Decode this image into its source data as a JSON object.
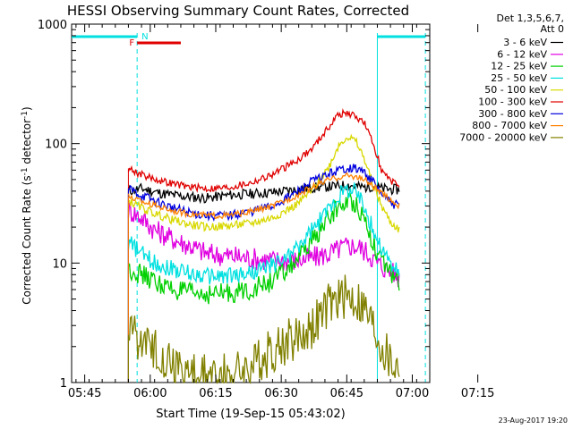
{
  "chart_data": {
    "type": "line",
    "title": "HESSI Observing Summary Count Rates, Corrected",
    "xlabel": "Start Time (19-Sep-15 05:43:02)",
    "ylabel_main": "Corrected Count Rate (s",
    "ylabel_sup1": "-1",
    "ylabel_mid": " detector",
    "ylabel_sup2": "-1",
    "ylabel_end": ")",
    "yscale": "log",
    "ylim": [
      1,
      1000
    ],
    "xlim": [
      -1,
      81
    ],
    "yticks": [
      {
        "value": 1,
        "label": "1"
      },
      {
        "value": 10,
        "label": "10"
      },
      {
        "value": 100,
        "label": "100"
      },
      {
        "value": 1000,
        "label": "1000"
      }
    ],
    "xticks": [
      {
        "value": 2,
        "label": "05:45"
      },
      {
        "value": 17,
        "label": "06:00"
      },
      {
        "value": 32,
        "label": "06:15"
      },
      {
        "value": 47,
        "label": "06:30"
      },
      {
        "value": 62,
        "label": "06:45"
      },
      {
        "value": 77,
        "label": "07:00"
      },
      {
        "value": 92,
        "label": "07:15"
      }
    ],
    "legend_header": [
      "Det 1,3,5,6,7,",
      "Att 0"
    ],
    "legend_position": "right",
    "x_units": "minutes after 05:43:02",
    "series": [
      {
        "name": "3 - 6 keV",
        "color": "#000000",
        "x": [
          12,
          15,
          20,
          25,
          30,
          35,
          40,
          45,
          50,
          55,
          60,
          62,
          64,
          66,
          68,
          70,
          74
        ],
        "y": [
          40,
          42,
          38,
          36,
          35,
          37,
          38,
          39,
          41,
          43,
          44,
          45,
          44,
          43,
          44,
          42,
          41
        ]
      },
      {
        "name": "6 - 12 keV",
        "color": "#e000e0",
        "x": [
          12,
          15,
          18,
          22,
          26,
          30,
          35,
          40,
          45,
          50,
          54,
          58,
          61,
          63,
          65,
          67,
          69,
          72,
          74
        ],
        "y": [
          28,
          24,
          19,
          16,
          14,
          12,
          11.5,
          11,
          10.5,
          10.5,
          11,
          12,
          13.5,
          14,
          13.5,
          12,
          10,
          8.5,
          7.5
        ]
      },
      {
        "name": "12 - 25 keV",
        "color": "#00d000",
        "x": [
          12,
          15,
          18,
          22,
          26,
          30,
          35,
          40,
          44,
          48,
          52,
          56,
          59,
          62,
          64,
          66,
          68,
          70,
          72,
          74
        ],
        "y": [
          9,
          8,
          7,
          6,
          5.6,
          5.5,
          5.6,
          6,
          6.8,
          8.5,
          12,
          19,
          27,
          33,
          32,
          24,
          15,
          10,
          8.2,
          7
        ]
      },
      {
        "name": "25 - 50 keV",
        "color": "#00e0e0",
        "x": [
          12,
          15,
          18,
          22,
          26,
          30,
          35,
          40,
          44,
          48,
          52,
          56,
          59,
          62,
          64,
          66,
          68,
          70,
          72,
          74
        ],
        "y": [
          15,
          12,
          10,
          9,
          8.2,
          7.8,
          7.8,
          8.3,
          9.2,
          11,
          15,
          23,
          33,
          42,
          40,
          30,
          19,
          13,
          10,
          8
        ]
      },
      {
        "name": "50 - 100 keV",
        "color": "#d8d800",
        "x": [
          12,
          15,
          18,
          22,
          26,
          30,
          35,
          40,
          45,
          50,
          54,
          58,
          60,
          62,
          64,
          66,
          68,
          70,
          72,
          74
        ],
        "y": [
          33,
          29,
          26,
          23,
          21,
          20,
          20.5,
          21.5,
          24,
          30,
          40,
          65,
          95,
          115,
          105,
          75,
          45,
          30,
          22,
          19
        ]
      },
      {
        "name": "100 - 300 keV",
        "color": "#e00000",
        "x": [
          12,
          15,
          20,
          25,
          30,
          35,
          40,
          45,
          50,
          54,
          58,
          60,
          62,
          64,
          66,
          68,
          70,
          72,
          74
        ],
        "y": [
          62,
          55,
          48,
          44,
          42,
          43,
          47,
          55,
          70,
          90,
          140,
          175,
          180,
          170,
          150,
          100,
          60,
          48,
          45
        ]
      },
      {
        "name": "300 - 800 keV",
        "color": "#0000e0",
        "x": [
          12,
          15,
          20,
          25,
          30,
          35,
          40,
          45,
          50,
          54,
          58,
          62,
          64,
          66,
          68,
          70,
          72,
          74
        ],
        "y": [
          42,
          37,
          31,
          27,
          25,
          25,
          27,
          30,
          38,
          48,
          56,
          63,
          62,
          58,
          48,
          38,
          32,
          30
        ]
      },
      {
        "name": "800 - 7000 keV",
        "color": "#ff8000",
        "x": [
          12,
          15,
          20,
          25,
          30,
          35,
          40,
          45,
          50,
          54,
          58,
          62,
          64,
          66,
          68,
          70,
          72,
          74
        ],
        "y": [
          36,
          33,
          29,
          26,
          25,
          25,
          27,
          30,
          36,
          43,
          50,
          54,
          53,
          50,
          44,
          38,
          34,
          30
        ]
      },
      {
        "name": "7000 - 20000 keV",
        "color": "#808000",
        "x": [
          12,
          13,
          14,
          15,
          16,
          17,
          18,
          22,
          26,
          30,
          34,
          38,
          42,
          46,
          50,
          54,
          56,
          58,
          60,
          62,
          64,
          66,
          68,
          70,
          72,
          74
        ],
        "y": [
          2.5,
          3,
          2.5,
          2,
          2.5,
          1.6,
          2,
          1.5,
          1.2,
          1.1,
          1.15,
          1.3,
          1.5,
          2,
          2.3,
          3,
          3.5,
          4.5,
          5,
          5.2,
          5,
          4.2,
          3,
          2,
          1.5,
          1.3
        ]
      }
    ],
    "attenuator_states": [
      {
        "start": -1,
        "end": 14,
        "label": "",
        "color": "#00e0e0"
      },
      {
        "start": 69,
        "end": 80,
        "label": "",
        "color": "#00e0e0"
      }
    ],
    "flag_markers": [
      {
        "label": "F",
        "color": "#e00000",
        "start": 14,
        "end": 24
      },
      {
        "label": "N",
        "color": "#00e0e0",
        "start": 14,
        "end": 14
      }
    ],
    "vertical_markers": [
      {
        "x": 14,
        "color": "#00e0e0",
        "style": "dashed"
      },
      {
        "x": 69,
        "color": "#00e0e0",
        "style": "solid"
      },
      {
        "x": 80,
        "color": "#00e0e0",
        "style": "dashed"
      }
    ],
    "footer_date": "23-Aug-2017 19:20"
  }
}
